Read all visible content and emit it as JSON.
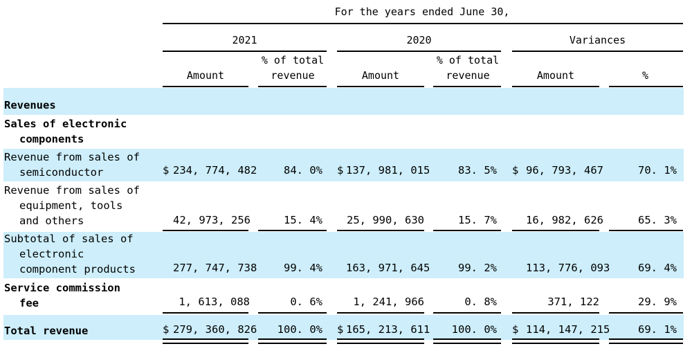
{
  "header": {
    "period": "For the  years ended June  30,",
    "year_2021": "2021",
    "year_2020": "2020",
    "variances": "Variances",
    "amount": "Amount",
    "pct_total_l1": "% of total",
    "pct_total_l2": "revenue",
    "pct": "%"
  },
  "rows": {
    "revenues": {
      "label": "Revenues"
    },
    "sales_elec": {
      "label1": "Sales of electronic",
      "label2": "components"
    },
    "semi": {
      "label1": "Revenue from sales of",
      "label2": "semiconductor",
      "amt2021": "234, 774, 482",
      "pct2021": "84. 0%",
      "amt2020": "137, 981, 015",
      "pct2020": "83. 5%",
      "var_amt": "96, 793, 467",
      "var_pct": "70. 1%"
    },
    "equip": {
      "label1": "Revenue from sales of",
      "label2": "equipment, tools",
      "label3": "and others",
      "amt2021": "42, 973, 256",
      "pct2021": "15. 4%",
      "amt2020": "25, 990, 630",
      "pct2020": "15. 7%",
      "var_amt": "16, 982, 626",
      "var_pct": "65. 3%"
    },
    "subtotal": {
      "label1": "Subtotal of sales of",
      "label2": "electronic",
      "label3": "component products",
      "amt2021": "277, 747, 738",
      "pct2021": "99. 4%",
      "amt2020": "163, 971, 645",
      "pct2020": "99. 2%",
      "var_amt": "113, 776, 093",
      "var_pct": "69. 4%"
    },
    "service": {
      "label1": "Service commission",
      "label2": "fee",
      "amt2021": "1, 613, 088",
      "pct2021": "0. 6%",
      "amt2020": "1, 241, 966",
      "pct2020": "0. 8%",
      "var_amt": "371, 122",
      "var_pct": "29. 9%"
    },
    "total": {
      "label": "Total revenue",
      "amt2021": "279, 360, 826",
      "pct2021": "100. 0%",
      "amt2020": "165, 213, 611",
      "pct2020": "100. 0%",
      "var_amt": "114, 147, 215",
      "var_pct": "69. 1%"
    }
  },
  "currency_symbol": "$",
  "colors": {
    "band": "#cdeefa",
    "rule": "#000000"
  }
}
